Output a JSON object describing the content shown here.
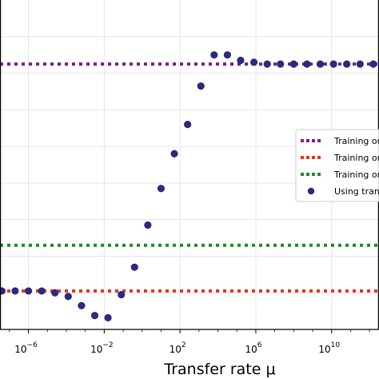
{
  "chart_data": {
    "type": "scatter",
    "title": "",
    "xlabel": "Transfer rate μ",
    "ylabel": "",
    "x_scale": "log10",
    "xlim_log10": [
      -7.5,
      12.5
    ],
    "ylim": [
      0,
      9
    ],
    "grid": true,
    "legend_position": "right",
    "x_ticks": [
      {
        "log10": -6,
        "base": "10",
        "exp": "−6"
      },
      {
        "log10": -2,
        "base": "10",
        "exp": "−2"
      },
      {
        "log10": 2,
        "base": "10",
        "exp": "2"
      },
      {
        "log10": 6,
        "base": "10",
        "exp": "6"
      },
      {
        "log10": 10,
        "base": "10",
        "exp": "10"
      }
    ],
    "series": [
      {
        "name": "Training on",
        "kind": "hline",
        "color": "#7a1f8a",
        "y": 7.25
      },
      {
        "name": "Training on",
        "kind": "hline",
        "color": "#e8321e",
        "y": 1.05
      },
      {
        "name": "Training on",
        "kind": "hline",
        "color": "#228b22",
        "y": 2.3
      },
      {
        "name": "Using trans",
        "kind": "scatter",
        "color": "#2b2a7e",
        "x_log10": [
          -7.4,
          -6.7,
          -6.0,
          -5.3,
          -4.6,
          -3.9,
          -3.2,
          -2.5,
          -1.8,
          -1.1,
          -0.4,
          0.3,
          1.0,
          1.7,
          2.4,
          3.1,
          3.8,
          4.5,
          5.2,
          5.9,
          6.6,
          7.3,
          8.0,
          8.7,
          9.4,
          10.1,
          10.8,
          11.5,
          12.2
        ],
        "y": [
          1.05,
          1.05,
          1.05,
          1.05,
          1.0,
          0.9,
          0.65,
          0.38,
          0.32,
          0.95,
          1.7,
          2.85,
          3.85,
          4.8,
          5.6,
          6.65,
          7.5,
          7.5,
          7.35,
          7.3,
          7.25,
          7.25,
          7.25,
          7.25,
          7.25,
          7.25,
          7.25,
          7.25,
          7.25
        ]
      }
    ]
  }
}
